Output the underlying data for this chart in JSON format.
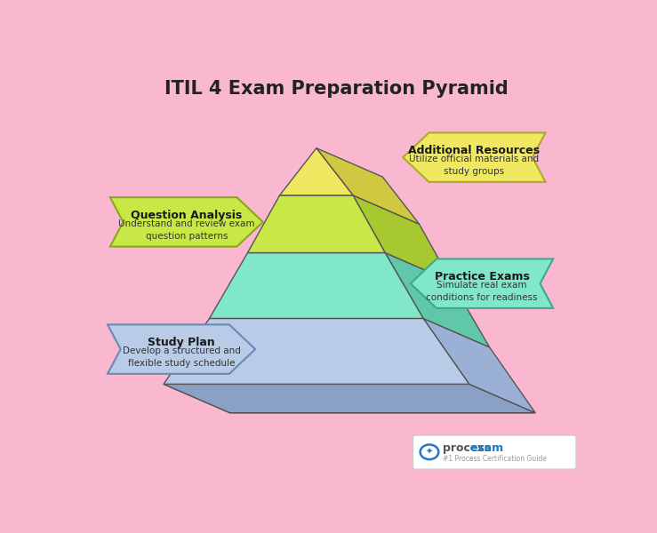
{
  "title": "ITIL 4 Exam Preparation Pyramid",
  "background_color": "#f9b8d0",
  "layers": [
    {
      "name": "Study Plan",
      "subtitle": "Develop a structured and\nflexible study schedule",
      "color": "#b8cce8",
      "side_color": "#9ab0d4",
      "bottom_color": "#8aa0c4",
      "edge_color": "#6a88b8",
      "label_side": "left"
    },
    {
      "name": "Practice Exams",
      "subtitle": "Simulate real exam\nconditions for readiness",
      "color": "#80e8c8",
      "side_color": "#60c8a8",
      "bottom_color": "#50b898",
      "edge_color": "#40a888",
      "label_side": "right"
    },
    {
      "name": "Question Analysis",
      "subtitle": "Understand and review exam\nquestion patterns",
      "color": "#c8e848",
      "side_color": "#a8c830",
      "bottom_color": "#98b820",
      "edge_color": "#88a818",
      "label_side": "left"
    },
    {
      "name": "Additional Resources",
      "subtitle": "Utilize official materials and\nstudy groups",
      "color": "#f0e860",
      "side_color": "#d0c840",
      "bottom_color": "#c0b830",
      "edge_color": "#b0a828",
      "label_side": "right"
    }
  ]
}
